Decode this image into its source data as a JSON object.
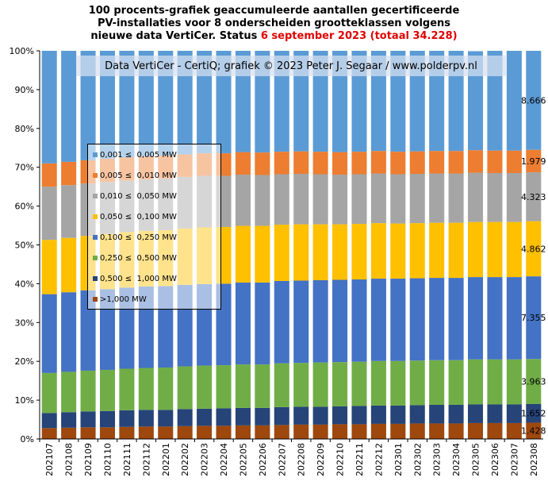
{
  "title": {
    "line1": "100 procents-grafiek geaccumuleerde aantallen gecertificeerde",
    "line2": "PV-installaties voor 8 onderscheiden grootteklassen volgens",
    "line3_prefix": "nieuwe data VertiCer. Status ",
    "line3_red": "6 september 2023 (totaal 34.228)",
    "highlight_color": "#e00000"
  },
  "watermark": "Data VertiCer - CertiQ; grafiek © 2023 Peter J. Segaar / www.polderpv.nl",
  "chart_data": {
    "type": "bar",
    "stacked": true,
    "percent": true,
    "ylim": [
      0,
      100
    ],
    "y_ticks": [
      "0%",
      "10%",
      "20%",
      "30%",
      "40%",
      "50%",
      "60%",
      "70%",
      "80%",
      "90%",
      "100%"
    ],
    "grid": false,
    "legend_position": "inside-left",
    "categories": [
      "202107",
      "202108",
      "202109",
      "202110",
      "202111",
      "202112",
      "202201",
      "202202",
      "202203",
      "202204",
      "202205",
      "202206",
      "202207",
      "202208",
      "202209",
      "202210",
      "202211",
      "202212",
      "202301",
      "202302",
      "202303",
      "202304",
      "202305",
      "202306",
      "202307",
      "202308"
    ],
    "series": [
      {
        "name": ">1,000 MW",
        "color": "#9e480e",
        "values": [
          2.8,
          2.9,
          3.0,
          3.0,
          3.1,
          3.2,
          3.2,
          3.3,
          3.4,
          3.4,
          3.5,
          3.5,
          3.6,
          3.7,
          3.7,
          3.8,
          3.8,
          3.9,
          3.9,
          4.0,
          4.0,
          4.0,
          4.1,
          4.1,
          4.1,
          4.2
        ]
      },
      {
        "name": "0,500 ≤  1,000 MW",
        "color": "#264478",
        "values": [
          3.9,
          4.0,
          4.1,
          4.2,
          4.3,
          4.3,
          4.3,
          4.4,
          4.4,
          4.5,
          4.5,
          4.5,
          4.6,
          4.6,
          4.6,
          4.6,
          4.7,
          4.7,
          4.7,
          4.7,
          4.8,
          4.8,
          4.8,
          4.8,
          4.8,
          4.8
        ]
      },
      {
        "name": "0,250 ≤  0,500 MW",
        "color": "#70ad47",
        "values": [
          10.3,
          10.4,
          10.5,
          10.6,
          10.7,
          10.8,
          10.9,
          11.0,
          11.1,
          11.1,
          11.2,
          11.2,
          11.3,
          11.3,
          11.4,
          11.4,
          11.4,
          11.5,
          11.5,
          11.5,
          11.5,
          11.5,
          11.6,
          11.6,
          11.6,
          11.6
        ]
      },
      {
        "name": "0,100 ≤  0,250 MW",
        "color": "#4472c4",
        "values": [
          20.3,
          20.5,
          20.7,
          20.8,
          20.9,
          21.0,
          21.0,
          21.0,
          21.0,
          21.0,
          21.1,
          21.1,
          21.2,
          21.2,
          21.2,
          21.2,
          21.2,
          21.2,
          21.2,
          21.2,
          21.2,
          21.2,
          21.2,
          21.2,
          21.2,
          21.3
        ]
      },
      {
        "name": "0,050 ≤  0,100 MW",
        "color": "#ffc000",
        "values": [
          14.0,
          14.0,
          14.0,
          14.2,
          14.3,
          14.3,
          14.4,
          14.5,
          14.6,
          14.6,
          14.6,
          14.6,
          14.5,
          14.5,
          14.4,
          14.3,
          14.3,
          14.3,
          14.2,
          14.2,
          14.2,
          14.2,
          14.2,
          14.2,
          14.2,
          14.2
        ]
      },
      {
        "name": "0,010 ≤  0,050 MW",
        "color": "#a5a5a5",
        "values": [
          13.7,
          13.6,
          13.5,
          13.4,
          13.3,
          13.3,
          13.3,
          13.3,
          13.3,
          13.2,
          13.2,
          13.1,
          13.0,
          13.0,
          12.9,
          12.8,
          12.8,
          12.8,
          12.7,
          12.7,
          12.7,
          12.7,
          12.7,
          12.6,
          12.6,
          12.6
        ]
      },
      {
        "name": "0,005 ≤  0,010 MW",
        "color": "#ed7d31",
        "values": [
          6.0,
          6.0,
          6.0,
          6.0,
          5.9,
          5.9,
          5.9,
          5.8,
          5.8,
          5.8,
          5.8,
          5.8,
          5.8,
          5.8,
          5.8,
          5.8,
          5.8,
          5.8,
          5.8,
          5.8,
          5.8,
          5.8,
          5.8,
          5.8,
          5.8,
          5.8
        ]
      },
      {
        "name": "0,001 ≤  0,005 MW",
        "color": "#5b9bd5",
        "values": [
          29.0,
          28.6,
          28.2,
          27.8,
          27.5,
          27.2,
          27.0,
          26.7,
          26.4,
          26.4,
          26.1,
          26.2,
          26.0,
          25.9,
          26.0,
          26.1,
          26.0,
          25.8,
          26.0,
          25.9,
          25.8,
          25.8,
          25.5,
          25.7,
          25.7,
          25.5
        ]
      }
    ],
    "end_labels": [
      "1.428",
      "1.652",
      "3.963",
      "7.355",
      "4.862",
      "4.323",
      "1.979",
      "8.666"
    ]
  }
}
